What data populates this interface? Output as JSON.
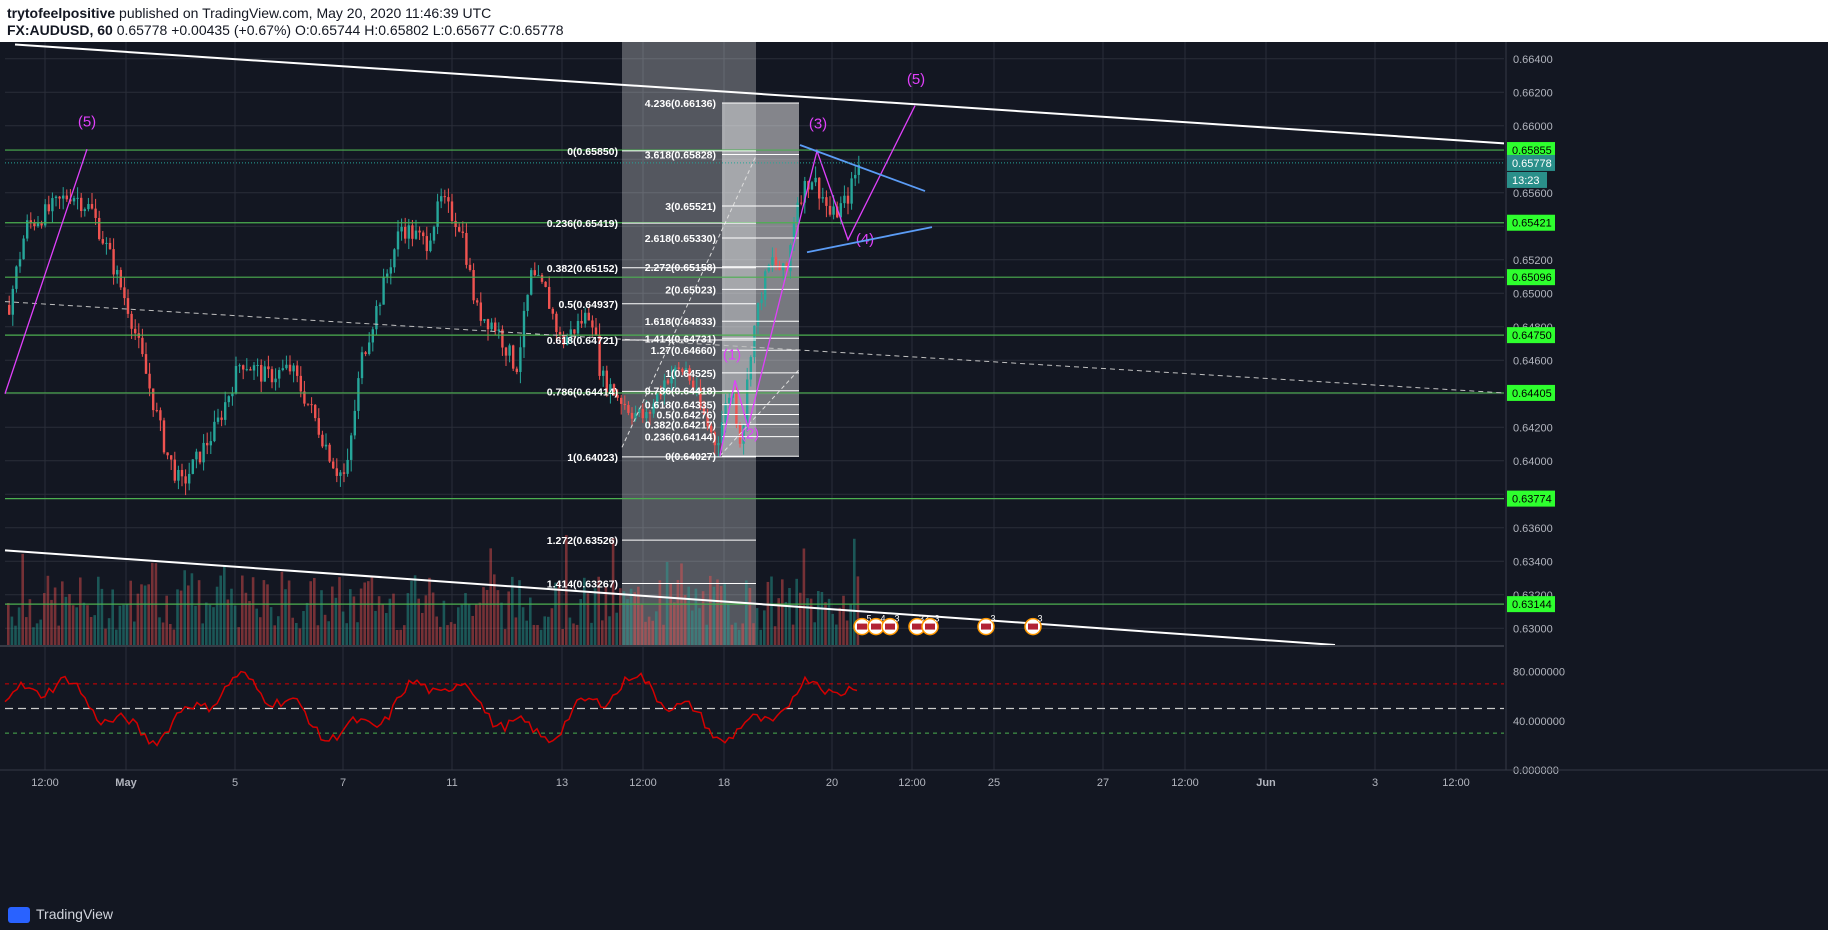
{
  "header": {
    "author": "trytofeelpositive",
    "published": "published on TradingView.com, May 20, 2020 11:46:39 UTC",
    "symbol": "FX:AUDUSD, 60",
    "last": "0.65778",
    "change": "+0.00435 (+0.67%)",
    "o_label": "O:",
    "o": "0.65744",
    "h_label": "H:",
    "h": "0.65802",
    "l_label": "L:",
    "l": "0.65677",
    "c_label": "C:",
    "c": "0.65778"
  },
  "footer": {
    "brand": "TradingView"
  },
  "colors": {
    "background": "#131722",
    "grid": "#2a2e39",
    "up": "#26a69a",
    "down": "#ef5350",
    "hline": "#4caf50",
    "hline_label": "#2eff2e",
    "wave": "#e040fb",
    "trend": "#ffffff",
    "triangle": "#5b9cf6",
    "rsi": "#d50000",
    "price_label_bg": "#2a8f8a"
  },
  "chart_data": {
    "type": "candlestick",
    "instrument": "FX:AUDUSD",
    "interval": "60",
    "price_axis": {
      "ylim": [
        0.629,
        0.665
      ],
      "ticks": [
        "0.66400",
        "0.66200",
        "0.66000",
        "0.65800",
        "0.65600",
        "0.65400",
        "0.65200",
        "0.65000",
        "0.64800",
        "0.64600",
        "0.64400",
        "0.64200",
        "0.64000",
        "0.63800",
        "0.63600",
        "0.63400",
        "0.63200",
        "0.63000"
      ]
    },
    "x_ticks": [
      "12:00",
      "May",
      "5",
      "7",
      "11",
      "13",
      "12:00",
      "18",
      "20",
      "12:00",
      "25",
      "27",
      "12:00",
      "Jun",
      "3",
      "12:00"
    ],
    "horizontal_levels": [
      "0.65855",
      "0.65421",
      "0.65096",
      "0.64750",
      "0.64405",
      "0.63774",
      "0.63144"
    ],
    "current_price": "0.65778",
    "countdown": "13:23",
    "fib_retracement_left": [
      {
        "label": "0(0.65850)",
        "value": 0.6585
      },
      {
        "label": "0.236(0.65419)",
        "value": 0.65419
      },
      {
        "label": "0.382(0.65152)",
        "value": 0.65152
      },
      {
        "label": "0.5(0.64937)",
        "value": 0.64937
      },
      {
        "label": "0.618(0.64721)",
        "value": 0.64721
      },
      {
        "label": "0.786(0.64414)",
        "value": 0.64414
      },
      {
        "label": "1(0.64023)",
        "value": 0.64023
      },
      {
        "label": "1.272(0.63526)",
        "value": 0.63526
      },
      {
        "label": "1.414(0.63267)",
        "value": 0.63267
      }
    ],
    "fib_extension_right": [
      {
        "label": "4.236(0.66136)",
        "value": 0.66136
      },
      {
        "label": "3.618(0.65828)",
        "value": 0.65828
      },
      {
        "label": "3(0.65521)",
        "value": 0.65521
      },
      {
        "label": "2.618(0.65330)",
        "value": 0.6533
      },
      {
        "label": "2.272(0.65158)",
        "value": 0.65158
      },
      {
        "label": "2(0.65023)",
        "value": 0.65023
      },
      {
        "label": "1.618(0.64833)",
        "value": 0.64833
      },
      {
        "label": "1.414(0.64731)",
        "value": 0.64731
      },
      {
        "label": "1.27(0.64660)",
        "value": 0.6466
      },
      {
        "label": "1(0.64525)",
        "value": 0.64525
      },
      {
        "label": "0.786(0.64418)",
        "value": 0.64418
      },
      {
        "label": "0.618(0.64335)",
        "value": 0.64335
      },
      {
        "label": "0.5(0.64276)",
        "value": 0.64276
      },
      {
        "label": "0.382(0.64217)",
        "value": 0.64217
      },
      {
        "label": "0.236(0.64144)",
        "value": 0.64144
      },
      {
        "label": "0(0.64027)",
        "value": 0.64027
      }
    ],
    "wave_labels": [
      "(5)",
      "(3)",
      "(4)",
      "(5)",
      "(1)",
      "(2)"
    ],
    "events": [
      "5",
      "4",
      "3",
      "33",
      "3",
      "3",
      "3"
    ],
    "rsi_axis": {
      "ylim": [
        0,
        100
      ],
      "ticks": [
        "80.000000",
        "40.000000",
        "0.000000"
      ]
    }
  }
}
